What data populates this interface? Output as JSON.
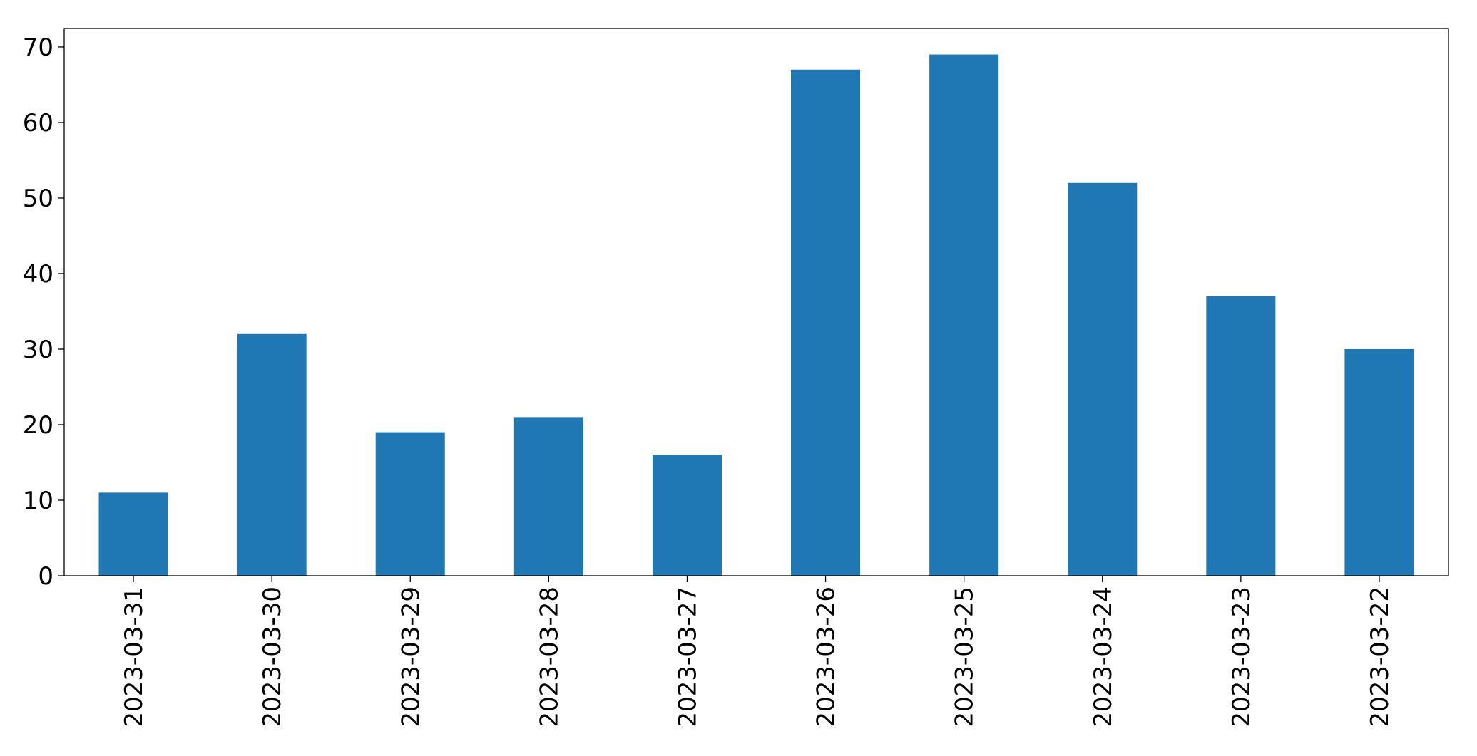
{
  "chart_data": {
    "type": "bar",
    "categories": [
      "2023-03-31",
      "2023-03-30",
      "2023-03-29",
      "2023-03-28",
      "2023-03-27",
      "2023-03-26",
      "2023-03-25",
      "2023-03-24",
      "2023-03-23",
      "2023-03-22"
    ],
    "values": [
      11,
      32,
      19,
      21,
      16,
      67,
      69,
      52,
      37,
      30
    ],
    "color": "#1f77b4",
    "ylim": [
      0,
      72.45
    ],
    "yticks": [
      0,
      10,
      20,
      30,
      40,
      50,
      60,
      70
    ],
    "grid": false
  }
}
